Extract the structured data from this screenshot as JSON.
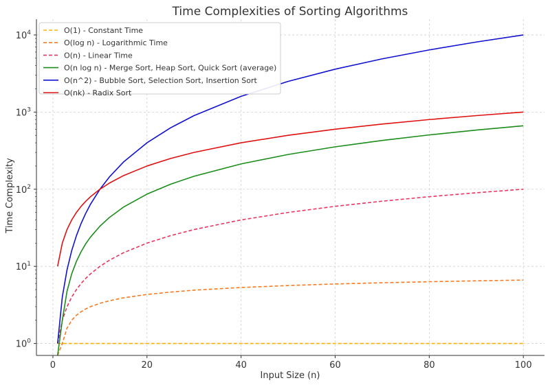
{
  "chart_data": {
    "type": "line",
    "title": "Time Complexities of Sorting Algorithms",
    "xlabel": "Input Size (n)",
    "ylabel": "Time Complexity",
    "x_scale": "linear",
    "y_scale": "log",
    "xlim": [
      -3.5,
      104.5
    ],
    "ylim": [
      0.7,
      16000
    ],
    "x_ticks": [
      0,
      20,
      40,
      60,
      80,
      100
    ],
    "y_ticks": [
      {
        "value": 1,
        "base": "10",
        "exp": "0"
      },
      {
        "value": 10,
        "base": "10",
        "exp": "1"
      },
      {
        "value": 100,
        "base": "10",
        "exp": "2"
      },
      {
        "value": 1000,
        "base": "10",
        "exp": "3"
      },
      {
        "value": 10000,
        "base": "10",
        "exp": "4"
      }
    ],
    "grid": true,
    "legend_position": "top-left",
    "x": [
      1,
      2,
      3,
      4,
      5,
      6,
      7,
      8,
      10,
      12,
      15,
      20,
      25,
      30,
      40,
      50,
      60,
      70,
      80,
      90,
      100
    ],
    "series": [
      {
        "name": "O(1) - Constant Time",
        "color": "#ffb000",
        "dash": true,
        "values": [
          1,
          1,
          1,
          1,
          1,
          1,
          1,
          1,
          1,
          1,
          1,
          1,
          1,
          1,
          1,
          1,
          1,
          1,
          1,
          1,
          1
        ]
      },
      {
        "name": "O(log n) - Logarithmic Time",
        "color": "#f47a20",
        "dash": true,
        "values": [
          0.7,
          1.0,
          1.58,
          2.0,
          2.32,
          2.58,
          2.81,
          3.0,
          3.32,
          3.58,
          3.91,
          4.32,
          4.64,
          4.91,
          5.32,
          5.64,
          5.91,
          6.13,
          6.32,
          6.49,
          6.64
        ]
      },
      {
        "name": "O(n) - Linear Time",
        "color": "#e8345e",
        "dash": true,
        "values": [
          1,
          2,
          3,
          4,
          5,
          6,
          7,
          8,
          10,
          12,
          15,
          20,
          25,
          30,
          40,
          50,
          60,
          70,
          80,
          90,
          100
        ]
      },
      {
        "name": "O(n log n) - Merge Sort, Heap Sort, Quick Sort (average)",
        "color": "#1a8c1a",
        "dash": false,
        "values": [
          0.7,
          2.0,
          4.75,
          8.0,
          11.6,
          15.5,
          19.7,
          24.0,
          33.2,
          43.0,
          58.6,
          86.4,
          116.1,
          147.2,
          212.9,
          282.2,
          354.4,
          429.1,
          505.8,
          584.3,
          664.4
        ]
      },
      {
        "name": "O(n^2) - Bubble Sort, Selection Sort, Insertion Sort",
        "color": "#1010d0",
        "dash": false,
        "values": [
          1,
          4,
          9,
          16,
          25,
          36,
          49,
          64,
          100,
          144,
          225,
          400,
          625,
          900,
          1600,
          2500,
          3600,
          4900,
          6400,
          8100,
          10000
        ]
      },
      {
        "name": "O(nk) - Radix Sort",
        "color": "#e01010",
        "dash": false,
        "values": [
          10,
          20,
          30,
          40,
          50,
          60,
          70,
          80,
          100,
          120,
          150,
          200,
          250,
          300,
          400,
          500,
          600,
          700,
          800,
          900,
          1000
        ]
      }
    ]
  }
}
